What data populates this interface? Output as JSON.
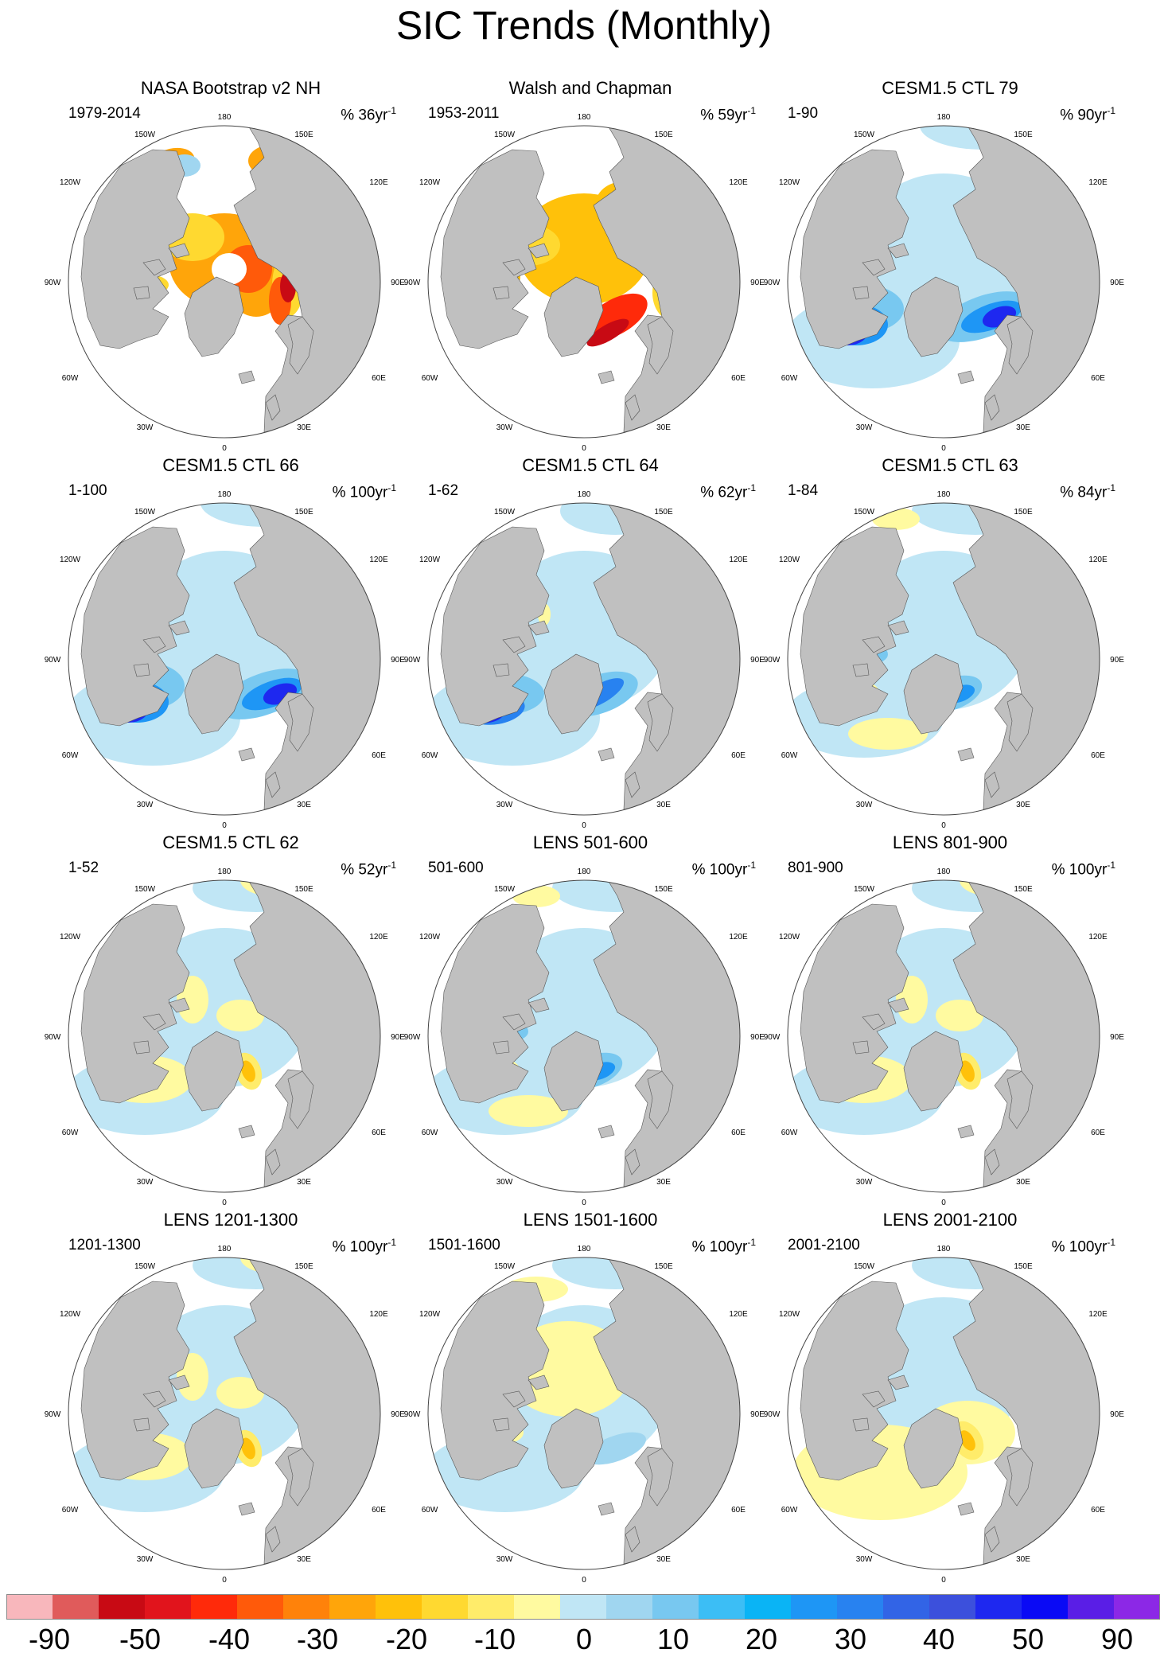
{
  "title": "SIC Trends (Monthly)",
  "colors": {
    "land": "#c0c0c0",
    "ocean": "#ffffff",
    "scale": [
      "#f8b7bc",
      "#e05b5b",
      "#c80a14",
      "#e1141c",
      "#ff2a0a",
      "#ff5a0a",
      "#ff820a",
      "#ffa50a",
      "#ffc10a",
      "#ffd930",
      "#ffec6a",
      "#fffaa0",
      "#c0e6f5",
      "#a0d6f0",
      "#78c8f0",
      "#3cbef5",
      "#0ab4f5",
      "#1e96f5",
      "#2882f0",
      "#3264e6",
      "#3c50dc",
      "#1e28f0",
      "#0a0af5",
      "#5a1ee6",
      "#8c28e6"
    ]
  },
  "longitude_labels": [
    "180",
    "150E",
    "120E",
    "90E",
    "60E",
    "30E",
    "0",
    "30W",
    "60W",
    "90W",
    "120W",
    "150W"
  ],
  "panels": [
    {
      "title": "NASA Bootstrap v2 NH",
      "period": "1979-2014",
      "units": "% 36yr",
      "units_exp": "-1",
      "pattern": "obs-nasa"
    },
    {
      "title": "Walsh and Chapman",
      "period": "1953-2011",
      "units": "% 59yr",
      "units_exp": "-1",
      "pattern": "obs-walsh"
    },
    {
      "title": "CESM1.5 CTL 79",
      "period": "1-90",
      "units": "% 90yr",
      "units_exp": "-1",
      "pattern": "blue-strong"
    },
    {
      "title": "CESM1.5 CTL 66",
      "period": "1-100",
      "units": "% 100yr",
      "units_exp": "-1",
      "pattern": "blue-strong"
    },
    {
      "title": "CESM1.5 CTL 64",
      "period": "1-62",
      "units": "% 62yr",
      "units_exp": "-1",
      "pattern": "blue-strong2"
    },
    {
      "title": "CESM1.5 CTL 63",
      "period": "1-84",
      "units": "% 84yr",
      "units_exp": "-1",
      "pattern": "mixed-blue"
    },
    {
      "title": "CESM1.5 CTL 62",
      "period": "1-52",
      "units": "% 52yr",
      "units_exp": "-1",
      "pattern": "mixed-yellow"
    },
    {
      "title": "LENS 501-600",
      "period": "501-600",
      "units": "% 100yr",
      "units_exp": "-1",
      "pattern": "mixed-blue"
    },
    {
      "title": "LENS 801-900",
      "period": "801-900",
      "units": "% 100yr",
      "units_exp": "-1",
      "pattern": "mixed-yellow"
    },
    {
      "title": "LENS 1201-1300",
      "period": "1201-1300",
      "units": "% 100yr",
      "units_exp": "-1",
      "pattern": "mixed-yellow"
    },
    {
      "title": "LENS 1501-1600",
      "period": "1501-1600",
      "units": "% 100yr",
      "units_exp": "-1",
      "pattern": "yellow-center"
    },
    {
      "title": "LENS 2001-2100",
      "period": "2001-2100",
      "units": "% 100yr",
      "units_exp": "-1",
      "pattern": "mixed-yellow2"
    }
  ],
  "colorbar": {
    "labels": [
      "-90",
      "-50",
      "-40",
      "-30",
      "-20",
      "-10",
      "0",
      "10",
      "20",
      "30",
      "40",
      "50",
      "90"
    ]
  }
}
